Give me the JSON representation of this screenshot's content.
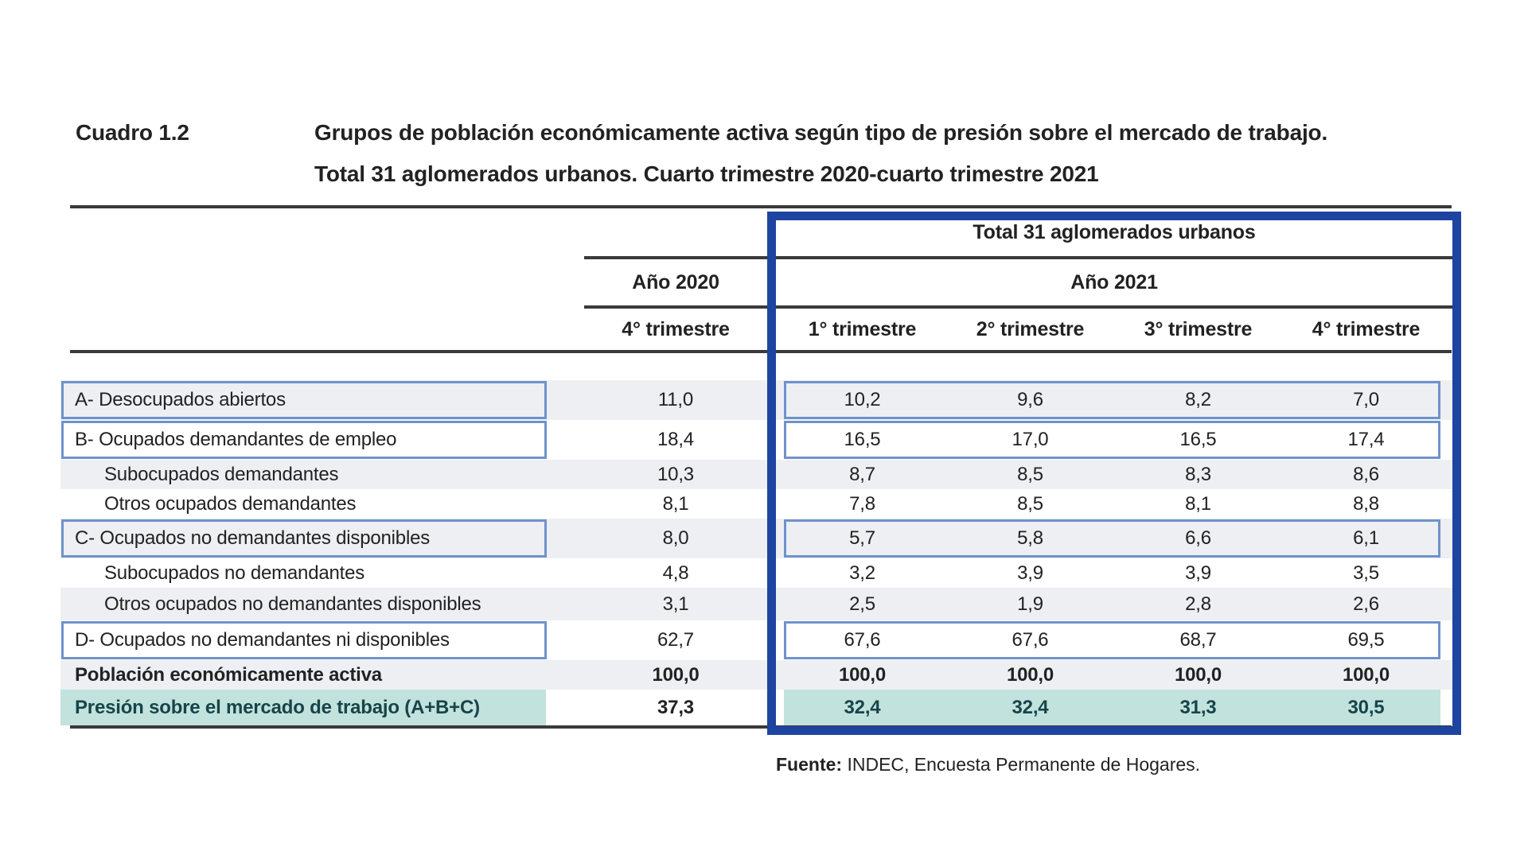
{
  "colors": {
    "frame_blue": "#1e44a1",
    "box_blue": "#6f92cc",
    "row_shade": "#edeff2",
    "teal_bg": "#c2e2dd",
    "teal_text": "#174449",
    "rule_dark": "#3a3a3a",
    "text": "#222222"
  },
  "caption": {
    "number": "Cuadro 1.2",
    "title_line1": "Grupos de población económicamente activa según tipo de presión sobre el mercado de trabajo.",
    "title_line2": "Total 31 aglomerados urbanos. Cuarto trimestre 2020-cuarto trimestre 2021"
  },
  "table": {
    "group_header": "Total 31 aglomerados urbanos",
    "year_2020": {
      "label": "Año 2020",
      "quarter": "4° trimestre"
    },
    "year_2021": {
      "label": "Año 2021",
      "quarters": [
        "1° trimestre",
        "2° trimestre",
        "3° trimestre",
        "4° trimestre"
      ]
    },
    "rows": [
      {
        "label": "A- Desocupados abiertos",
        "indent": false,
        "boxed": true,
        "shaded": true,
        "bold": false,
        "teal": false,
        "tall": false,
        "y2020": "11,0",
        "q2021": [
          "10,2",
          "9,6",
          "8,2",
          "7,0"
        ]
      },
      {
        "label": "B- Ocupados demandantes de empleo",
        "indent": false,
        "boxed": true,
        "shaded": false,
        "bold": false,
        "teal": false,
        "tall": false,
        "y2020": "18,4",
        "q2021": [
          "16,5",
          "17,0",
          "16,5",
          "17,4"
        ]
      },
      {
        "label": "Subocupados demandantes",
        "indent": true,
        "boxed": false,
        "shaded": true,
        "bold": false,
        "teal": false,
        "tall": false,
        "y2020": "10,3",
        "q2021": [
          "8,7",
          "8,5",
          "8,3",
          "8,6"
        ]
      },
      {
        "label": "Otros ocupados demandantes",
        "indent": true,
        "boxed": false,
        "shaded": false,
        "bold": false,
        "teal": false,
        "tall": false,
        "y2020": "8,1",
        "q2021": [
          "7,8",
          "8,5",
          "8,1",
          "8,8"
        ]
      },
      {
        "label": "C- Ocupados no demandantes disponibles",
        "indent": false,
        "boxed": true,
        "shaded": true,
        "bold": false,
        "teal": false,
        "tall": false,
        "y2020": "8,0",
        "q2021": [
          "5,7",
          "5,8",
          "6,6",
          "6,1"
        ]
      },
      {
        "label": "Subocupados no demandantes",
        "indent": true,
        "boxed": false,
        "shaded": false,
        "bold": false,
        "teal": false,
        "tall": false,
        "y2020": "4,8",
        "q2021": [
          "3,2",
          "3,9",
          "3,9",
          "3,5"
        ]
      },
      {
        "label": "Otros ocupados no demandantes disponibles",
        "indent": true,
        "boxed": false,
        "shaded": true,
        "bold": false,
        "teal": false,
        "tall": true,
        "y2020": "3,1",
        "q2021": [
          "2,5",
          "1,9",
          "2,8",
          "2,6"
        ]
      },
      {
        "label": "D- Ocupados no demandantes ni disponibles",
        "indent": false,
        "boxed": true,
        "shaded": false,
        "bold": false,
        "teal": false,
        "tall": false,
        "y2020": "62,7",
        "q2021": [
          "67,6",
          "67,6",
          "68,7",
          "69,5"
        ]
      },
      {
        "label": "Población económicamente activa",
        "indent": false,
        "boxed": false,
        "shaded": true,
        "bold": true,
        "teal": false,
        "tall": false,
        "y2020": "100,0",
        "q2021": [
          "100,0",
          "100,0",
          "100,0",
          "100,0"
        ]
      },
      {
        "label": "Presión sobre el mercado de trabajo (A+B+C)",
        "indent": false,
        "boxed": false,
        "shaded": false,
        "bold": true,
        "teal": true,
        "tall": false,
        "y2020": "37,3",
        "q2021": [
          "32,4",
          "32,4",
          "31,3",
          "30,5"
        ]
      }
    ]
  },
  "source": {
    "label": "Fuente:",
    "text": " INDEC, Encuesta Permanente de Hogares."
  }
}
